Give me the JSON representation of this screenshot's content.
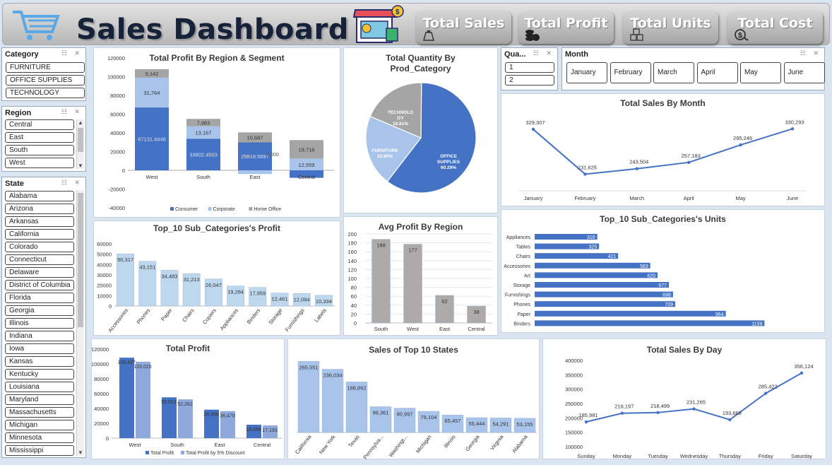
{
  "header": {
    "title": "Sales Dashboard",
    "kpis": [
      {
        "label": "Total Sales",
        "icon": "money-bag-icon"
      },
      {
        "label": "Total Profit",
        "icon": "coins-icon"
      },
      {
        "label": "Total Units",
        "icon": "boxes-icon"
      },
      {
        "label": "Total Cost",
        "icon": "cost-icon"
      }
    ]
  },
  "slicers": {
    "category": {
      "title": "Category",
      "items": [
        "FURNITURE",
        "OFFICE SUPPLIES",
        "TECHNOLOGY"
      ]
    },
    "region": {
      "title": "Region",
      "items": [
        "Central",
        "East",
        "South",
        "West"
      ]
    },
    "state": {
      "title": "State",
      "items": [
        "Alabama",
        "Arizona",
        "Arkansas",
        "California",
        "Colorado",
        "Connecticut",
        "Delaware",
        "District of Columbia",
        "Florida",
        "Georgia",
        "Illinois",
        "Indiana",
        "Iowa",
        "Kansas",
        "Kentucky",
        "Louisiana",
        "Maryland",
        "Massachusetts",
        "Michigan",
        "Minnesota",
        "Mississippi"
      ]
    },
    "quarter": {
      "title": "Qua...",
      "items": [
        "1",
        "2"
      ]
    },
    "month": {
      "title": "Month",
      "items": [
        "January",
        "February",
        "March",
        "April",
        "May",
        "June"
      ]
    }
  },
  "colors": {
    "dark_blue": "#4472c4",
    "light_blue": "#a9c4eb",
    "pale_blue": "#bdd7ee",
    "gray": "#a5a5a5",
    "gray_bar": "#aeaaaa"
  },
  "chart_data": [
    {
      "id": "profit_region_segment",
      "type": "bar",
      "title": "Total Profit By Region & Segment",
      "stacked": true,
      "categories": [
        "West",
        "South",
        "East",
        "Central"
      ],
      "yticks": [
        "120000",
        "100000",
        "80000",
        "60000",
        "40000",
        "20000",
        "0",
        "-20000",
        "-40000"
      ],
      "ylim": [
        -40000,
        120000
      ],
      "series": [
        {
          "name": "Consumer",
          "values": [
            67131.4448,
            33802.4503,
            29818.5697,
            -8000
          ],
          "labels": [
            "67131.4448",
            "33802.4503",
            "29818.5697",
            ""
          ]
        },
        {
          "name": "Corporate",
          "values": [
            31764,
            13167,
            -4000,
            12559
          ],
          "labels": [
            "31,764",
            "13,167",
            "",
            ""
          ]
        },
        {
          "name": "Home Office",
          "values": [
            9142,
            7983,
            10687,
            19716
          ],
          "labels": [
            "9,142",
            "7,983",
            "10,687",
            "19,716"
          ]
        }
      ],
      "extra_labels": [
        "-4,000",
        "12,559"
      ],
      "legend": "bottom"
    },
    {
      "id": "qty_category",
      "type": "pie",
      "title": "Total Quantity By Prod_Category",
      "slices": [
        {
          "name": "OFFICE SUPPLIES",
          "value": 60.29,
          "label": "60.29%"
        },
        {
          "name": "FURNITURE",
          "value": 20.9,
          "label": "20.90%"
        },
        {
          "name": "TECHNOLOGY",
          "value": 18.81,
          "label": "18.81%"
        }
      ]
    },
    {
      "id": "sales_month",
      "type": "line",
      "title": "Total Sales By Month",
      "categories": [
        "January",
        "February",
        "March",
        "April",
        "May",
        "June"
      ],
      "values": [
        329307,
        231625,
        243504,
        257183,
        295246,
        330293
      ],
      "labels": [
        "329,307",
        "231,625",
        "243,504",
        "257,183",
        "295,246",
        "330,293"
      ]
    },
    {
      "id": "top10_profit",
      "type": "bar",
      "title": "Top_10 Sub_Categories's Profit",
      "categories": [
        "Accessories",
        "Phones",
        "Paper",
        "Chairs",
        "Copiers",
        "Appliances",
        "Binders",
        "Storage",
        "Furnishings",
        "Labels"
      ],
      "values": [
        50317,
        43151,
        34483,
        31213,
        26047,
        19284,
        17959,
        12461,
        12084,
        10334
      ],
      "labels": [
        "50,317",
        "43,151",
        "34,483",
        "31,213",
        "26,047",
        "19,284",
        "17,959",
        "12,461",
        "12,084",
        "10,334"
      ],
      "yticks": [
        "60000",
        "50000",
        "40000",
        "30000",
        "20000",
        "10000",
        "0"
      ],
      "ylim": [
        0,
        60000
      ]
    },
    {
      "id": "avg_profit_region",
      "type": "bar",
      "title": "Avg Profit By Region",
      "categories": [
        "South",
        "West",
        "East",
        "Central"
      ],
      "values": [
        188,
        177,
        62,
        38
      ],
      "labels": [
        "188",
        "177",
        "62",
        "38"
      ],
      "yticks": [
        "200",
        "180",
        "160",
        "140",
        "120",
        "100",
        "80",
        "60",
        "40",
        "20",
        "0"
      ],
      "ylim": [
        0,
        200
      ]
    },
    {
      "id": "top10_units",
      "type": "bar",
      "orientation": "horizontal",
      "title": "Top_10 Sub_Categories's Units",
      "categories": [
        "Appliances",
        "Tables",
        "Chairs",
        "Accessories",
        "Art",
        "Storage",
        "Furnishings",
        "Phones",
        "Paper",
        "Binders"
      ],
      "values": [
        316,
        325,
        421,
        583,
        620,
        677,
        698,
        709,
        964,
        1159
      ],
      "labels": [
        "316",
        "325",
        "421",
        "583",
        "620",
        "677",
        "698",
        "709",
        "964",
        "1159"
      ]
    },
    {
      "id": "total_profit",
      "type": "bar",
      "title": "Total Profit",
      "categories": [
        "West",
        "South",
        "East",
        "Central"
      ],
      "series": [
        {
          "name": "Total Profit",
          "values": [
            108437,
            55012,
            38399,
            18099
          ],
          "labels": [
            "108,437",
            "55,012",
            "38,399",
            "18,099"
          ]
        },
        {
          "name": "Total Profit by 5% Discount",
          "values": [
            103015,
            52262,
            36479,
            17193
          ],
          "labels": [
            "103,015",
            "52,262",
            "36,479",
            "17,193"
          ]
        }
      ],
      "yticks": [
        "120000",
        "100000",
        "80000",
        "60000",
        "40000",
        "20000",
        "0"
      ],
      "ylim": [
        0,
        120000
      ],
      "legend": "bottom"
    },
    {
      "id": "sales_states",
      "type": "bar",
      "title": "Sales of Top 10 States",
      "categories": [
        "California",
        "New York",
        "Texas",
        "Pennsylva...",
        "Washingt...",
        "Michigan",
        "Illinois",
        "Georgia",
        "Virginia",
        "Alabama"
      ],
      "values": [
        265551,
        236034,
        188862,
        96361,
        90997,
        79104,
        65457,
        55444,
        54291,
        53155
      ],
      "labels": [
        "265,551",
        "236,034",
        "188,862",
        "96,361",
        "90,997",
        "79,104",
        "65,457",
        "55,444",
        "54,291",
        "53,155"
      ]
    },
    {
      "id": "sales_day",
      "type": "line",
      "title": "Total Sales By Day",
      "categories": [
        "Sunday",
        "Monday",
        "Tuesday",
        "Wednesday",
        "Thursday",
        "Friday",
        "Saturday"
      ],
      "values": [
        185981,
        216197,
        218499,
        231265,
        193668,
        285422,
        356124
      ],
      "labels": [
        "185,981",
        "216,197",
        "218,499",
        "231,265",
        "193,668",
        "285,422",
        "356,124"
      ],
      "yticks": [
        "400000",
        "350000",
        "300000",
        "250000",
        "200000",
        "150000",
        "100000"
      ],
      "ylim": [
        100000,
        400000
      ]
    }
  ]
}
